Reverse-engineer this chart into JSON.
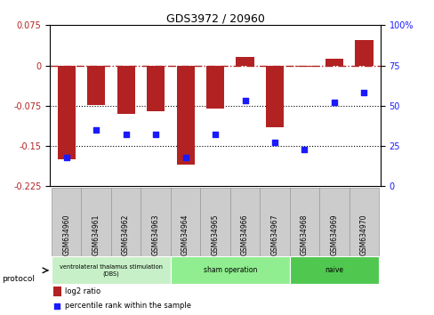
{
  "title": "GDS3972 / 20960",
  "samples": [
    "GSM634960",
    "GSM634961",
    "GSM634962",
    "GSM634963",
    "GSM634964",
    "GSM634965",
    "GSM634966",
    "GSM634967",
    "GSM634968",
    "GSM634969",
    "GSM634970"
  ],
  "log2_ratio": [
    -0.175,
    -0.073,
    -0.09,
    -0.085,
    -0.185,
    -0.08,
    0.015,
    -0.115,
    -0.002,
    0.012,
    0.047
  ],
  "percentile_rank": [
    18,
    35,
    32,
    32,
    18,
    32,
    53,
    27,
    23,
    52,
    58
  ],
  "bar_color": "#b22222",
  "dot_color": "#1a1aff",
  "ylim_left": [
    -0.225,
    0.075
  ],
  "ylim_right": [
    0,
    100
  ],
  "yticks_left": [
    0.075,
    0,
    -0.075,
    -0.15,
    -0.225
  ],
  "yticks_right": [
    100,
    75,
    50,
    25,
    0
  ],
  "ytick_labels_left": [
    "0.075",
    "0",
    "-0.075",
    "-0.15",
    "-0.225"
  ],
  "ytick_labels_right": [
    "100%",
    "75",
    "50",
    "25",
    "0"
  ],
  "hline_y": 0,
  "dotted_lines": [
    -0.075,
    -0.15
  ],
  "dbs_label": "ventrolateral thalamus stimulation\n(DBS)",
  "sham_label": "sham operation",
  "naive_label": "naive",
  "dbs_range": [
    0,
    3
  ],
  "sham_range": [
    4,
    7
  ],
  "naive_range": [
    8,
    10
  ],
  "dbs_color": "#c8f0c8",
  "sham_color": "#90ee90",
  "naive_color": "#50c850",
  "gray_box_color": "#cccccc",
  "gray_box_edge": "#999999",
  "protocol_label": "protocol",
  "legend_items": [
    "log2 ratio",
    "percentile rank within the sample"
  ],
  "legend_colors": [
    "#b22222",
    "#1a1aff"
  ],
  "background_color": "#ffffff",
  "bar_width": 0.6
}
